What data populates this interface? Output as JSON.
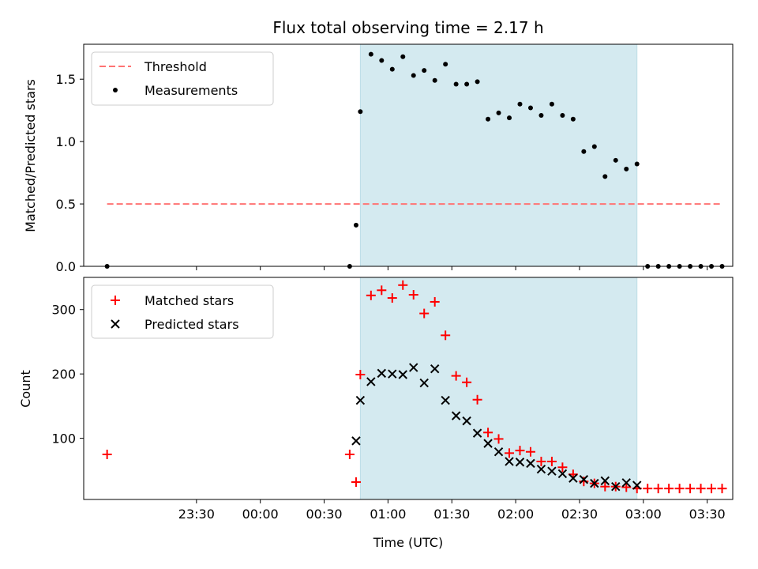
{
  "chart_data": {
    "type": "scatter",
    "title": "Flux total observing time = 2.17 h",
    "xlabel": "Time (UTC)",
    "x_ticks": [
      "23:30",
      "00:00",
      "00:30",
      "01:00",
      "01:30",
      "02:00",
      "02:30",
      "03:00",
      "03:30"
    ],
    "x_tick_minutes": [
      -30,
      0,
      30,
      60,
      90,
      120,
      150,
      180,
      210
    ],
    "xlim_minutes": [
      -83,
      222
    ],
    "observing_window_minutes": [
      47,
      177
    ],
    "window_color": "#d4eaf0",
    "top_panel": {
      "ylabel": "Matched/Predicted stars",
      "ylim": [
        0,
        1.78
      ],
      "yticks": [
        "0.0",
        "0.5",
        "1.0",
        "1.5"
      ],
      "ytick_values": [
        0,
        0.5,
        1.0,
        1.5
      ],
      "threshold": {
        "name": "Threshold",
        "value": 0.5,
        "x_range_minutes": [
          -72,
          217
        ],
        "color": "#ff7373"
      },
      "measurements": {
        "name": "Measurements",
        "color": "#000000",
        "x_minutes": [
          -72,
          42,
          45,
          47,
          52,
          57,
          62,
          67,
          72,
          77,
          82,
          87,
          92,
          97,
          102,
          107,
          112,
          117,
          122,
          127,
          132,
          137,
          142,
          147,
          152,
          157,
          162,
          167,
          172,
          177,
          182,
          187,
          192,
          197,
          202,
          207,
          212,
          217
        ],
        "y": [
          0,
          0,
          0.33,
          1.24,
          1.7,
          1.65,
          1.58,
          1.68,
          1.53,
          1.57,
          1.49,
          1.62,
          1.46,
          1.46,
          1.48,
          1.18,
          1.23,
          1.19,
          1.3,
          1.27,
          1.21,
          1.3,
          1.21,
          1.18,
          0.92,
          0.96,
          0.72,
          0.85,
          0.78,
          0.82,
          0.0,
          0.0,
          0.0,
          0.0,
          0.0,
          0.0,
          0.0,
          0.0
        ]
      },
      "legend_position": "upper-left"
    },
    "bottom_panel": {
      "ylabel": "Count",
      "ylim": [
        5,
        350
      ],
      "yticks": [
        "100",
        "200",
        "300"
      ],
      "ytick_values": [
        100,
        200,
        300
      ],
      "series": [
        {
          "name": "Matched stars",
          "marker": "+",
          "color": "#ff0000",
          "x_minutes": [
            -72,
            42,
            45,
            47,
            52,
            57,
            62,
            67,
            72,
            77,
            82,
            87,
            92,
            97,
            102,
            107,
            112,
            117,
            122,
            127,
            132,
            137,
            142,
            147,
            152,
            157,
            162,
            167,
            172,
            177,
            182,
            187,
            192,
            197,
            202,
            207,
            212,
            217
          ],
          "y": [
            75,
            75,
            32,
            199,
            322,
            330,
            318,
            338,
            323,
            294,
            312,
            260,
            197,
            187,
            160,
            109,
            99,
            77,
            81,
            79,
            64,
            64,
            55,
            44,
            33,
            30,
            25,
            25,
            24,
            22,
            22,
            22,
            22,
            22,
            22,
            22,
            22,
            22
          ]
        },
        {
          "name": "Predicted stars",
          "marker": "x",
          "color": "#000000",
          "x_minutes": [
            45,
            47,
            52,
            57,
            62,
            67,
            72,
            77,
            82,
            87,
            92,
            97,
            102,
            107,
            112,
            117,
            122,
            127,
            132,
            137,
            142,
            147,
            152,
            157,
            162,
            167,
            172,
            177
          ],
          "y": [
            96,
            159,
            188,
            201,
            200,
            199,
            210,
            186,
            208,
            159,
            135,
            127,
            108,
            92,
            79,
            64,
            63,
            61,
            52,
            49,
            45,
            38,
            36,
            30,
            34,
            25,
            31,
            27
          ]
        }
      ],
      "legend_position": "upper-left"
    }
  }
}
